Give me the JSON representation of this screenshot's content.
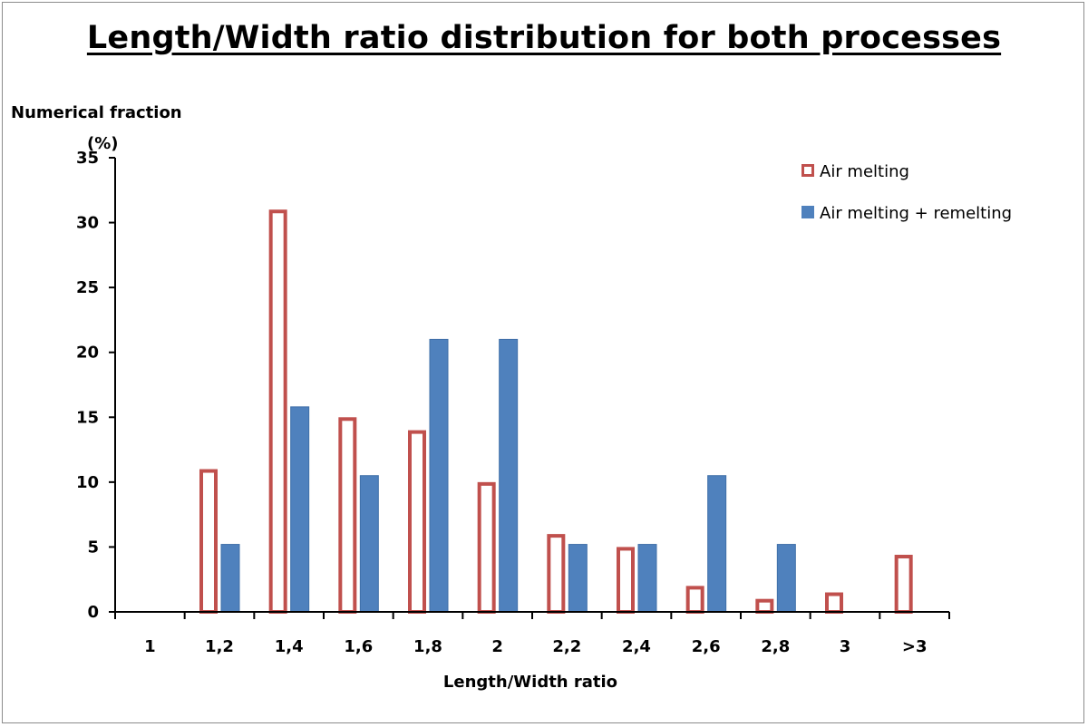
{
  "chart_data": {
    "type": "bar",
    "title": "Length/Width ratio distribution for both processes",
    "ylabel_line1": "Numerical fraction",
    "ylabel_line2": "(%)",
    "xlabel": "Length/Width ratio",
    "categories": [
      "1",
      "1,2",
      "1,4",
      "1,6",
      "1,8",
      "2",
      "2,2",
      "2,4",
      "2,6",
      "2,8",
      "3",
      ">3"
    ],
    "ylim": [
      0,
      35
    ],
    "yticks": [
      0,
      5,
      10,
      15,
      20,
      25,
      30,
      35
    ],
    "grid": false,
    "legend_position": "top-right",
    "series": [
      {
        "name": "Air melting",
        "style": "hollow",
        "color": "#c0504d",
        "values": [
          0,
          11,
          31,
          15,
          14,
          10,
          6,
          5,
          2,
          1,
          1.5,
          4.4
        ]
      },
      {
        "name": "Air melting + remelting",
        "style": "filled",
        "color": "#4f81bd",
        "values": [
          0,
          5.2,
          15.8,
          10.5,
          21,
          21,
          5.2,
          5.2,
          10.5,
          5.2,
          0,
          0
        ]
      }
    ]
  }
}
